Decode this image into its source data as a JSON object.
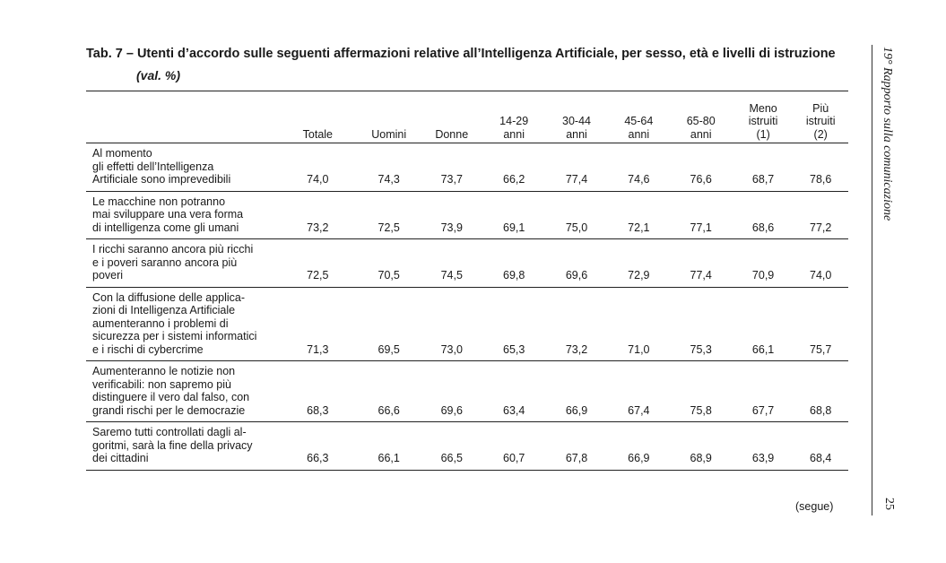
{
  "title": "Tab. 7 – Utenti d’accordo sulle seguenti affermazioni relative all’Intelligenza Artificiale, per sesso, età e livelli di istruzione",
  "subtitle": "(val. %)",
  "side_title": "19° Rapporto sulla comunicazione",
  "page_number": "25",
  "segue": "(segue)",
  "table": {
    "columns": [
      [
        "Totale"
      ],
      [
        "Uomini"
      ],
      [
        "Donne"
      ],
      [
        "14-29",
        "anni"
      ],
      [
        "30-44",
        "anni"
      ],
      [
        "45-64",
        "anni"
      ],
      [
        "65-80",
        "anni"
      ],
      [
        "Meno",
        "istruiti",
        "(1)"
      ],
      [
        "Più",
        "istruiti",
        "(2)"
      ]
    ],
    "rows": [
      {
        "label": [
          "Al momento",
          "gli effetti dell’Intelligenza",
          "Artificiale sono imprevedibili"
        ],
        "values": [
          "74,0",
          "74,3",
          "73,7",
          "66,2",
          "77,4",
          "74,6",
          "76,6",
          "68,7",
          "78,6"
        ]
      },
      {
        "label": [
          "Le macchine non potranno",
          "mai sviluppare una vera forma",
          "di intelligenza come gli umani"
        ],
        "values": [
          "73,2",
          "72,5",
          "73,9",
          "69,1",
          "75,0",
          "72,1",
          "77,1",
          "68,6",
          "77,2"
        ]
      },
      {
        "label": [
          "I ricchi saranno ancora più ricchi",
          "e i poveri saranno ancora più",
          "poveri"
        ],
        "values": [
          "72,5",
          "70,5",
          "74,5",
          "69,8",
          "69,6",
          "72,9",
          "77,4",
          "70,9",
          "74,0"
        ]
      },
      {
        "label": [
          "Con la diffusione delle applica-",
          "zioni di Intelligenza Artificiale",
          "aumenteranno i problemi di",
          "sicurezza per i sistemi informatici",
          "e i rischi di cybercrime"
        ],
        "values": [
          "71,3",
          "69,5",
          "73,0",
          "65,3",
          "73,2",
          "71,0",
          "75,3",
          "66,1",
          "75,7"
        ]
      },
      {
        "label": [
          "Aumenteranno le notizie non",
          "verificabili: non sapremo più",
          "distinguere il vero dal falso, con",
          "grandi rischi per le democrazie"
        ],
        "values": [
          "68,3",
          "66,6",
          "69,6",
          "63,4",
          "66,9",
          "67,4",
          "75,8",
          "67,7",
          "68,8"
        ]
      },
      {
        "label": [
          "Saremo tutti controllati dagli al-",
          "goritmi, sarà la fine della privacy",
          "dei cittadini"
        ],
        "values": [
          "66,3",
          "66,1",
          "66,5",
          "60,7",
          "67,8",
          "66,9",
          "68,9",
          "63,9",
          "68,4"
        ]
      }
    ]
  }
}
